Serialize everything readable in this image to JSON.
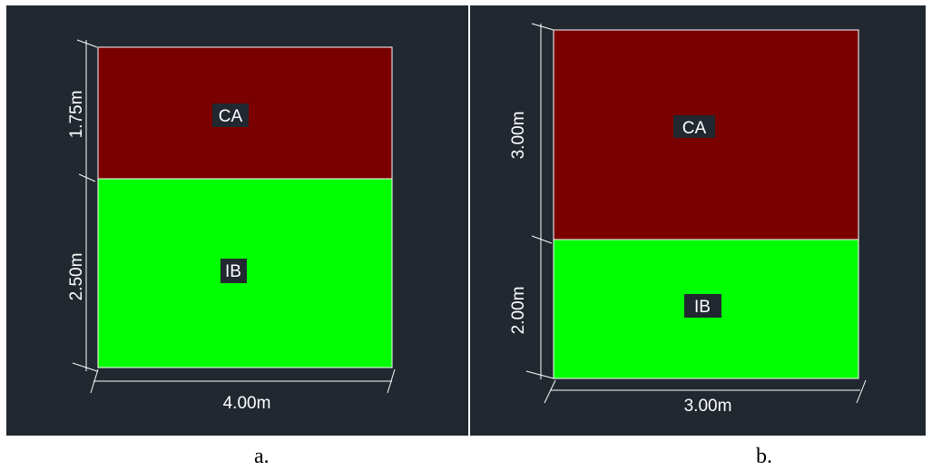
{
  "colors": {
    "background": "#212830",
    "zone_ca": "#7a0000",
    "zone_ib": "#00ff00",
    "outline": "#ffffff",
    "label_bg": "#212830"
  },
  "panel_a": {
    "caption": "a.",
    "zone_top_label": "CA",
    "zone_bottom_label": "IB",
    "dim_top": "1.75m",
    "dim_bottom": "2.50m",
    "dim_width": "4.00m"
  },
  "panel_b": {
    "caption": "b.",
    "zone_top_label": "CA",
    "zone_bottom_label": "IB",
    "dim_top": "3.00m",
    "dim_bottom": "2.00m",
    "dim_width": "3.00m"
  }
}
